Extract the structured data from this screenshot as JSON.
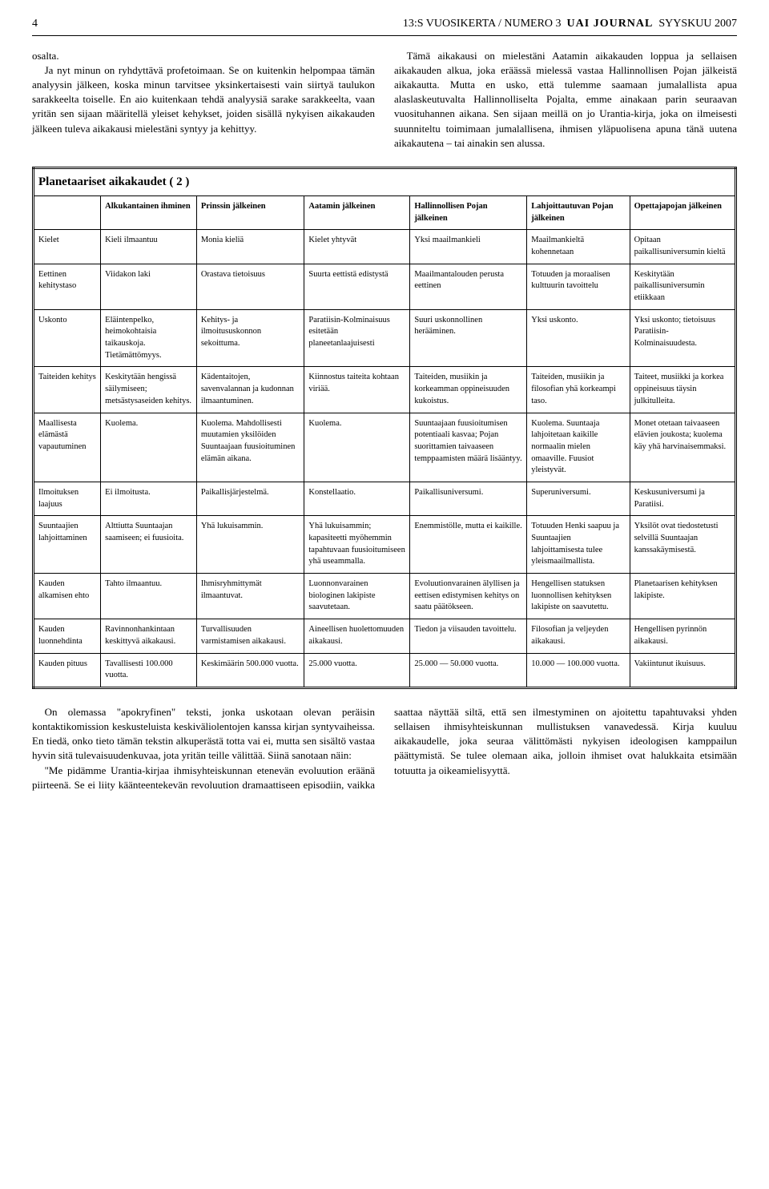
{
  "header": {
    "page_number": "4",
    "volume": "13:S VUOSIKERTA / NUMERO 3",
    "journal": "UAI JOURNAL",
    "issue": "SYYSKUU 2007"
  },
  "body_top": {
    "p1": "osalta.",
    "p2": "Ja nyt minun on ryhdyttävä profetoimaan. Se on kuitenkin helpompaa tämän analyysin jälkeen, koska minun tarvitsee yksinkertaisesti vain siirtyä taulukon sarakkeelta toiselle. En aio kuitenkaan tehdä analyysiä sarake sarakkeelta, vaan yritän sen sijaan määritellä yleiset kehykset, joiden sisällä nykyisen aikakauden jälkeen tuleva aikakausi mielestäni syntyy ja kehittyy.",
    "p3": "Tämä aikakausi on mielestäni Aatamin aikakauden loppua ja sellaisen aikakauden alkua, joka eräässä mielessä vastaa Hallinnollisen Pojan jälkeistä aikakautta. Mutta en usko, että tulemme saamaan jumalallista apua alaslaskeutuvalta Hallinnolliselta Pojalta, emme ainakaan parin seuraavan vuosituhannen aikana. Sen sijaan meillä on jo Urantia-kirja, joka on ilmeisesti suunniteltu toimimaan jumalallisena, ihmisen yläpuolisena apuna tänä uutena aikakautena – tai ainakin sen alussa."
  },
  "table": {
    "title": "Planetaariset aikakaudet ( 2 )",
    "columns": [
      "",
      "Alkukantainen ihminen",
      "Prinssin jälkeinen",
      "Aatamin jälkeinen",
      "Hallinnollisen Pojan jälkeinen",
      "Lahjoittautuvan Pojan jälkeinen",
      "Opettajapojan jälkeinen"
    ],
    "rows": [
      [
        "Kielet",
        "Kieli ilmaantuu",
        "Monia kieliä",
        "Kielet yhtyvät",
        "Yksi maailmankieli",
        "Maailmankieltä kohennetaan",
        "Opitaan paikallisuniversumin kieltä"
      ],
      [
        "Eettinen kehitystaso",
        "Viidakon laki",
        "Orastava tietoisuus",
        "Suurta eettistä edistystä",
        "Maailmantalouden perusta eettinen",
        "Totuuden ja moraalisen kulttuurin tavoittelu",
        "Keskitytään paikallisuniversumin etiikkaan"
      ],
      [
        "Uskonto",
        "Eläintenpelko, heimokohtaisia taikauskoja. Tietämättömyys.",
        "Kehitys- ja ilmoitususkonnon sekoittuma.",
        "Paratiisin-Kolminaisuus esitetään planeetanlaajuisesti",
        "Suuri uskonnollinen herääminen.",
        "Yksi uskonto.",
        "Yksi uskonto; tietoisuus Paratiisin-Kolminaisuudesta."
      ],
      [
        "Taiteiden kehitys",
        "Keskitytään hengissä säilymiseen; metsästysaseiden kehitys.",
        "Kädentaitojen, savenvalannan ja kudonnan ilmaantuminen.",
        "Kiinnostus taiteita kohtaan viriää.",
        "Taiteiden, musiikin ja korkeamman oppineisuuden kukoistus.",
        "Taiteiden, musiikin ja filosofian yhä korkeampi taso.",
        "Taiteet, musiikki ja korkea oppineisuus täysin julkitulleita."
      ],
      [
        "Maallisesta elämästä vapautuminen",
        "Kuolema.",
        "Kuolema. Mahdollisesti muutamien yksilöiden Suuntaajaan fuusioituminen elämän aikana.",
        "Kuolema.",
        "Suuntaajaan fuusioitumisen potentiaali kasvaa; Pojan suorittamien taivaaseen temppaamisten määrä lisääntyy.",
        "Kuolema. Suuntaaja lahjoitetaan kaikille normaalin mielen omaaville. Fuusiot yleistyvät.",
        "Monet otetaan taivaaseen elävien joukosta; kuolema käy yhä harvinaisemmaksi."
      ],
      [
        "Ilmoituksen laajuus",
        "Ei ilmoitusta.",
        "Paikallisjärjestelmä.",
        "Konstellaatio.",
        "Paikallisuniversumi.",
        "Superuniversumi.",
        "Keskusuniversumi ja Paratiisi."
      ],
      [
        "Suuntaajien lahjoittaminen",
        "Alttiutta Suuntaajan saamiseen; ei fuusioita.",
        "Yhä lukuisammin.",
        "Yhä lukuisammin; kapasiteetti myöhemmin tapahtuvaan fuusioitumiseen yhä useammalla.",
        "Enemmistölle, mutta ei kaikille.",
        "Totuuden Henki saapuu ja Suuntaajien lahjoittamisesta tulee yleismaailmallista.",
        "Yksilöt ovat tiedostetusti selvillä Suuntaajan kanssakäymisestä."
      ],
      [
        "Kauden alkamisen ehto",
        "Tahto ilmaantuu.",
        "Ihmisryhmittymät ilmaantuvat.",
        "Luonnonvarainen biologinen lakipiste saavutetaan.",
        "Evoluutionvarainen älyllisen ja eettisen edistymisen kehitys on saatu päätökseen.",
        "Hengellisen statuksen luonnollisen kehityksen lakipiste on saavutettu.",
        "Planetaarisen kehityksen lakipiste."
      ],
      [
        "Kauden luonnehdinta",
        "Ravinnonhankintaan keskittyvä aikakausi.",
        "Turvallisuuden varmistamisen aikakausi.",
        "Aineellisen huolettomuuden aikakausi.",
        "Tiedon ja viisauden tavoittelu.",
        "Filosofian ja veljeyden aikakausi.",
        "Hengellisen pyrinnön aikakausi."
      ],
      [
        "Kauden pituus",
        "Tavallisesti 100.000 vuotta.",
        "Keskimäärin 500.000 vuotta.",
        "25.000 vuotta.",
        "25.000 — 50.000 vuotta.",
        "10.000 — 100.000 vuotta.",
        "Vakiintunut ikuisuus."
      ]
    ]
  },
  "body_bottom": {
    "p1": "On olemassa \"apokryfinen\" teksti, jonka uskotaan olevan peräisin kontaktikomission keskusteluista keskiväliolentojen kanssa kirjan syntyvaiheissa. En tiedä, onko tieto tämän tekstin alkuperästä totta vai ei, mutta sen sisältö vastaa hyvin sitä tulevaisuudenkuvaa, jota yritän teille välittää. Siinä sanotaan näin:",
    "p2": "\"Me pidämme Urantia-kirjaa ihmisyhteiskunnan etenevän evoluution eräänä piirteenä. Se ei liity käänteentekevän revoluution dramaattiseen episodiin, vaikka saattaa näyttää siltä, että sen ilmestyminen on ajoitettu tapahtuvaksi yhden sellaisen ihmisyhteiskunnan mullistuksen vanavedessä. Kirja kuuluu aikakaudelle, joka seuraa välittömästi nykyisen ideologisen kamppailun päättymistä. Se tulee olemaan aika, jolloin ihmiset ovat halukkaita etsimään totuutta ja oikeamielisyyttä."
  }
}
